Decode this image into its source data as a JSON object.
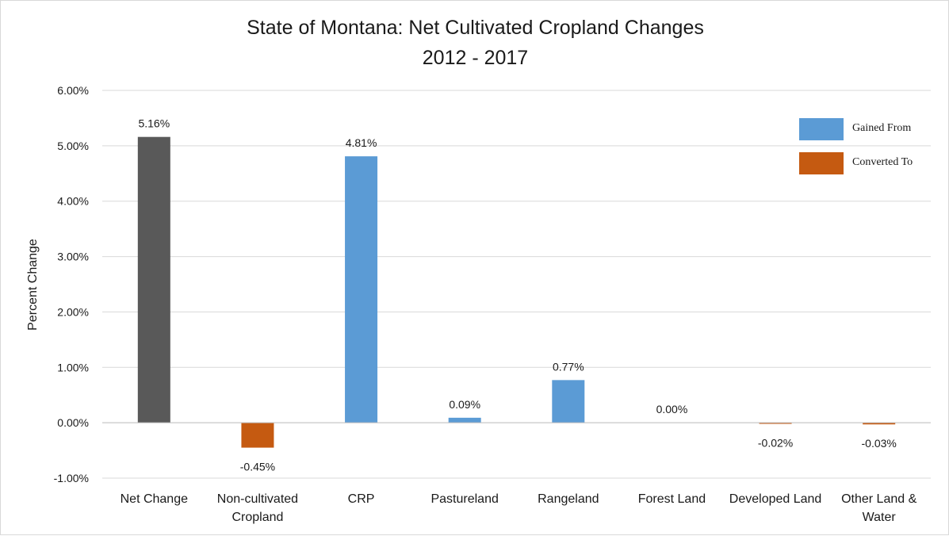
{
  "chart_data": {
    "type": "bar",
    "title": "State of Montana: Net Cultivated Cropland Changes",
    "subtitle": "2012 - 2017",
    "ylabel": "Percent Change",
    "xlabel": "",
    "ylim": [
      -1.0,
      6.0
    ],
    "yticks": [
      "-1.00%",
      "0.00%",
      "1.00%",
      "2.00%",
      "3.00%",
      "4.00%",
      "5.00%",
      "6.00%"
    ],
    "grid": true,
    "legend_position": "top-right",
    "categories": [
      [
        "Net Change"
      ],
      [
        "Non-cultivated",
        "Cropland"
      ],
      [
        "CRP"
      ],
      [
        "Pastureland"
      ],
      [
        "Rangeland"
      ],
      [
        "Forest Land"
      ],
      [
        "Developed Land"
      ],
      [
        "Other Land &",
        "Water"
      ]
    ],
    "values": [
      5.16,
      -0.45,
      4.81,
      0.09,
      0.77,
      0.0,
      -0.02,
      -0.03
    ],
    "data_labels": [
      "5.16%",
      "-0.45%",
      "4.81%",
      "0.09%",
      "0.77%",
      "0.00%",
      "-0.02%",
      "-0.03%"
    ],
    "bar_kind": [
      "net",
      "converted",
      "gained",
      "gained",
      "gained",
      "gained",
      "converted",
      "converted"
    ],
    "legend": [
      {
        "key": "gained",
        "label": "Gained From",
        "color": "#5b9bd5"
      },
      {
        "key": "converted",
        "label": "Converted To",
        "color": "#c55a11"
      }
    ],
    "colors": {
      "net": "#595959",
      "gained": "#5b9bd5",
      "converted": "#c55a11",
      "grid": "#d9d9d9",
      "text": "#1a1a1a"
    }
  }
}
